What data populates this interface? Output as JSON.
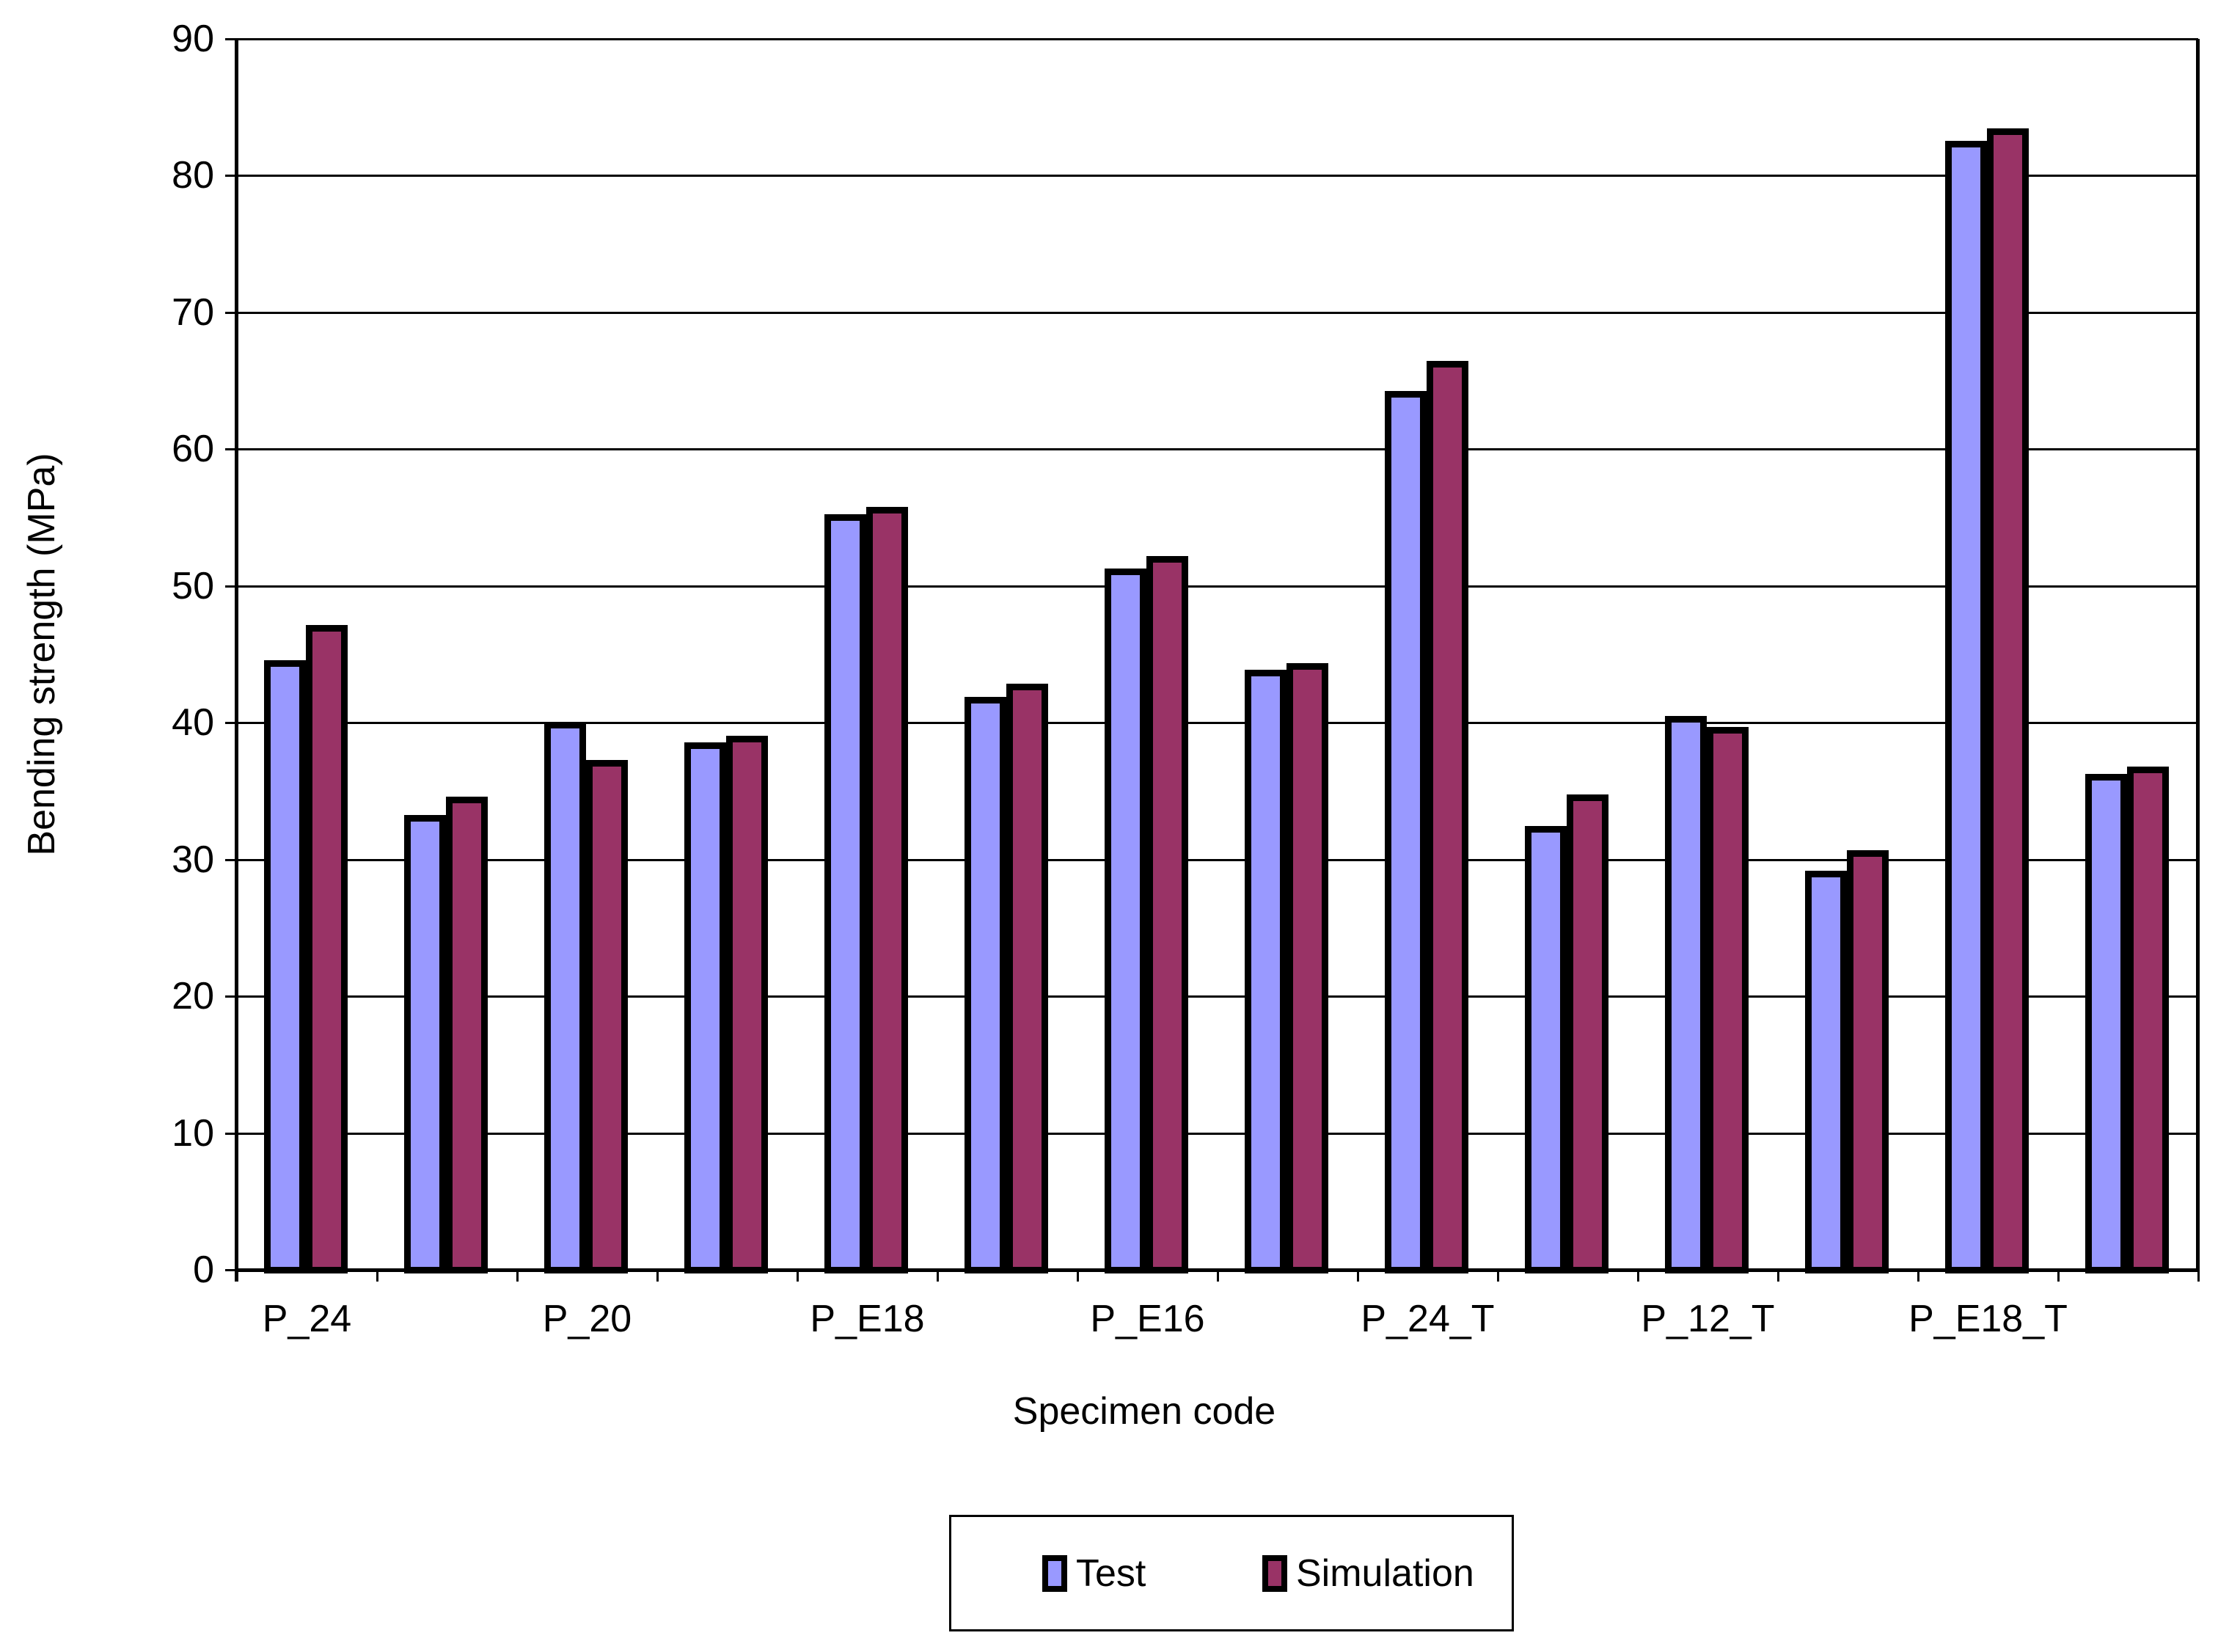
{
  "chart_data": {
    "type": "bar",
    "title": "",
    "xlabel": "Specimen code",
    "ylabel": "Bending strength (MPa)",
    "ylim": [
      0,
      90
    ],
    "ytick_step": 10,
    "ytick_labels": [
      "0",
      "10",
      "20",
      "30",
      "40",
      "50",
      "60",
      "70",
      "80",
      "90"
    ],
    "grid": "horizontal",
    "legend_position": "bottom",
    "bar_border_color": "#000000",
    "categories": [
      "P_24",
      "",
      "P_20",
      "",
      "P_E18",
      "",
      "P_E16",
      "",
      "P_24_T",
      "",
      "P_12_T",
      "",
      "P_E18_T",
      ""
    ],
    "series": [
      {
        "name": "Test",
        "color": "#9999FF",
        "values": [
          44.3,
          33.0,
          39.8,
          38.3,
          55.0,
          41.6,
          51.0,
          43.6,
          64.0,
          32.2,
          40.2,
          28.9,
          82.3,
          36.0
        ]
      },
      {
        "name": "Simulation",
        "color": "#993366",
        "values": [
          46.9,
          34.3,
          37.0,
          38.8,
          55.5,
          42.6,
          51.9,
          44.1,
          66.2,
          34.5,
          39.4,
          30.4,
          83.2,
          36.5
        ]
      }
    ]
  },
  "legend": {
    "items": [
      {
        "label": "Test",
        "color": "#9999FF"
      },
      {
        "label": "Simulation",
        "color": "#993366"
      }
    ]
  }
}
